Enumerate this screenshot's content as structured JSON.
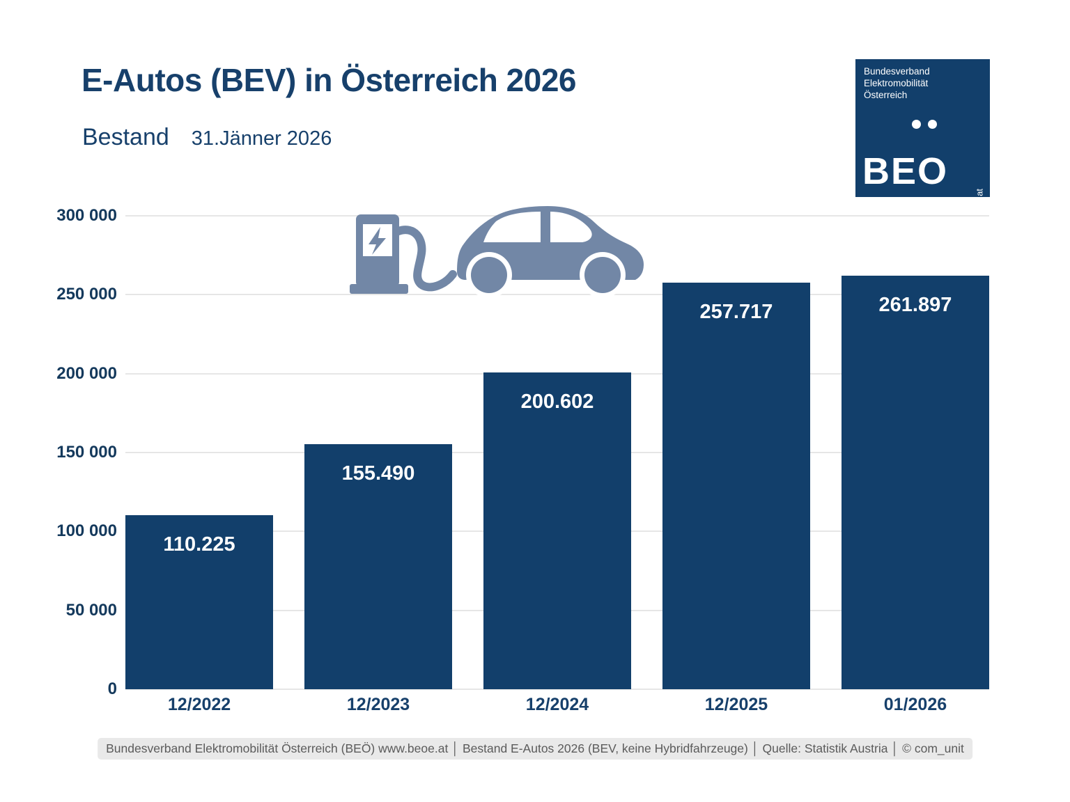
{
  "header": {
    "title": "E-Autos (BEV) in Österreich 2026",
    "subtitle_label": "Bestand",
    "subtitle_date": "31.Jänner 2026"
  },
  "logo": {
    "org": [
      "Bundesverband",
      "Elektromobilität",
      "Österreich"
    ],
    "wordmark": "BEO",
    "site": "beoe.at"
  },
  "chart_data": {
    "type": "bar",
    "title": "E-Autos (BEV) in Österreich 2026 — Bestand 31.Jänner 2026",
    "categories": [
      "12/2022",
      "12/2023",
      "12/2024",
      "12/2025",
      "01/2026"
    ],
    "values": [
      110225,
      155490,
      200602,
      257717,
      261897
    ],
    "value_labels": [
      "110.225",
      "155.490",
      "200.602",
      "257.717",
      "261.897"
    ],
    "xlabel": "",
    "ylabel": "",
    "ylim": [
      0,
      300000
    ],
    "yticks": [
      {
        "value": 0,
        "label": "0"
      },
      {
        "value": 50000,
        "label": "50 000"
      },
      {
        "value": 100000,
        "label": "100 000"
      },
      {
        "value": 150000,
        "label": "150 000"
      },
      {
        "value": 200000,
        "label": "200 000"
      },
      {
        "value": 250000,
        "label": "250 000"
      },
      {
        "value": 300000,
        "label": "300 000"
      }
    ],
    "grid": "horizontal",
    "legend": "none",
    "bar_color": "#123F6B",
    "value_label_color": "#FFFFFF"
  },
  "icon": {
    "name": "ev-charging-car-icon",
    "color": "#7287A6"
  },
  "colors": {
    "navy_text": "#17406B",
    "bar": "#123F6B",
    "gridline": "#E6E6E6",
    "footer_bg": "#E9E9E9",
    "footer_text": "#5B5B5B"
  },
  "footer": {
    "text": "Bundesverband Elektromobilität Österreich (BEÖ) www.beoe.at │ Bestand E-Autos 2026 (BEV, keine Hybridfahrzeuge) │ Quelle: Statistik Austria │ © com_unit"
  }
}
